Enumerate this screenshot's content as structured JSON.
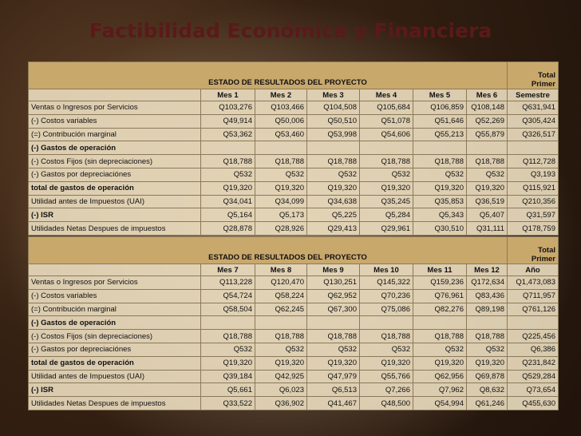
{
  "title": "Factibilidad Económica y Financiera",
  "tables": [
    {
      "heading": "ESTADO DE RESULTADOS DEL PROYECTO",
      "total_heading": [
        "Total",
        "Primer"
      ],
      "columns": [
        "Mes 1",
        "Mes 2",
        "Mes 3",
        "Mes 4",
        "Mes 5",
        "Mes 6",
        "Semestre"
      ],
      "rows": [
        {
          "label": "Ventas o Ingresos por Servicios",
          "values": [
            "Q103,276",
            "Q103,466",
            "Q104,508",
            "Q105,684",
            "Q106,859",
            "Q108,148",
            "Q631,941"
          ]
        },
        {
          "label": "(-) Costos variables",
          "values": [
            "Q49,914",
            "Q50,006",
            "Q50,510",
            "Q51,078",
            "Q51,646",
            "Q52,269",
            "Q305,424"
          ]
        },
        {
          "label": "(=) Contribución marginal",
          "values": [
            "Q53,362",
            "Q53,460",
            "Q53,998",
            "Q54,606",
            "Q55,213",
            "Q55,879",
            "Q326,517"
          ]
        },
        {
          "label": "(-) Gastos de operación",
          "values": []
        },
        {
          "label": "(-) Costos Fijos (sin depreciaciones)",
          "values": [
            "Q18,788",
            "Q18,788",
            "Q18,788",
            "Q18,788",
            "Q18,788",
            "Q18,788",
            "Q112,728"
          ]
        },
        {
          "label": "(-) Gastos por depreciaciónes",
          "values": [
            "Q532",
            "Q532",
            "Q532",
            "Q532",
            "Q532",
            "Q532",
            "Q3,193"
          ]
        },
        {
          "label": "total de gastos de operación",
          "values": [
            "Q19,320",
            "Q19,320",
            "Q19,320",
            "Q19,320",
            "Q19,320",
            "Q19,320",
            "Q115,921"
          ]
        },
        {
          "label": "Utilidad antes de Impuestos (UAI)",
          "values": [
            "Q34,041",
            "Q34,099",
            "Q34,638",
            "Q35,245",
            "Q35,853",
            "Q36,519",
            "Q210,356"
          ]
        },
        {
          "label": "(-) ISR",
          "values": [
            "Q5,164",
            "Q5,173",
            "Q5,225",
            "Q5,284",
            "Q5,343",
            "Q5,407",
            "Q31,597"
          ]
        },
        {
          "label": "Utilidades Netas Despues de impuestos",
          "values": [
            "Q28,878",
            "Q28,926",
            "Q29,413",
            "Q29,961",
            "Q30,510",
            "Q31,111",
            "Q178,759"
          ]
        }
      ]
    },
    {
      "heading": "ESTADO DE RESULTADOS DEL PROYECTO",
      "total_heading": [
        "Total",
        "Primer"
      ],
      "columns": [
        "Mes 7",
        "Mes 8",
        "Mes 9",
        "Mes 10",
        "Mes 11",
        "Mes 12",
        "Año"
      ],
      "rows": [
        {
          "label": "Ventas o Ingresos por Servicios",
          "values": [
            "Q113,228",
            "Q120,470",
            "Q130,251",
            "Q145,322",
            "Q159,236",
            "Q172,634",
            "Q1,473,083"
          ]
        },
        {
          "label": "(-) Costos variables",
          "values": [
            "Q54,724",
            "Q58,224",
            "Q62,952",
            "Q70,236",
            "Q76,961",
            "Q83,436",
            "Q711,957"
          ]
        },
        {
          "label": "(=) Contribución marginal",
          "values": [
            "Q58,504",
            "Q62,245",
            "Q67,300",
            "Q75,086",
            "Q82,276",
            "Q89,198",
            "Q761,126"
          ]
        },
        {
          "label": "(-) Gastos de operación",
          "values": []
        },
        {
          "label": "(-) Costos Fijos (sin depreciaciones)",
          "values": [
            "Q18,788",
            "Q18,788",
            "Q18,788",
            "Q18,788",
            "Q18,788",
            "Q18,788",
            "Q225,456"
          ]
        },
        {
          "label": "(-) Gastos por depreciaciónes",
          "values": [
            "Q532",
            "Q532",
            "Q532",
            "Q532",
            "Q532",
            "Q532",
            "Q6,386"
          ]
        },
        {
          "label": "total de gastos de operación",
          "values": [
            "Q19,320",
            "Q19,320",
            "Q19,320",
            "Q19,320",
            "Q19,320",
            "Q19,320",
            "Q231,842"
          ]
        },
        {
          "label": "Utilidad antes de Impuestos (UAI)",
          "values": [
            "Q39,184",
            "Q42,925",
            "Q47,979",
            "Q55,766",
            "Q62,956",
            "Q69,878",
            "Q529,284"
          ]
        },
        {
          "label": "(-) ISR",
          "values": [
            "Q5,661",
            "Q6,023",
            "Q6,513",
            "Q7,266",
            "Q7,962",
            "Q8,632",
            "Q73,654"
          ]
        },
        {
          "label": "Utilidades Netas Despues de impuestos",
          "values": [
            "Q33,522",
            "Q36,902",
            "Q41,467",
            "Q48,500",
            "Q54,994",
            "Q61,246",
            "Q455,630"
          ]
        }
      ]
    }
  ]
}
